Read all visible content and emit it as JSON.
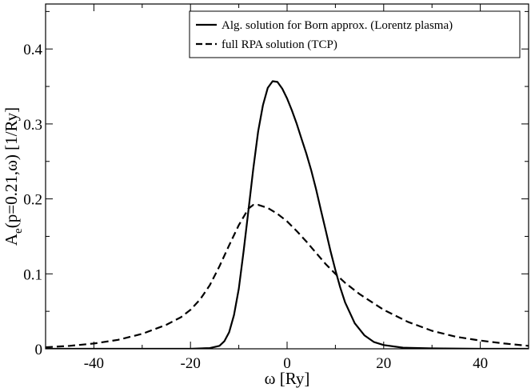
{
  "chart_data": {
    "type": "line",
    "title": "",
    "xlabel": "ω [Ry]",
    "ylabel": {
      "base": "A",
      "subscript": "e",
      "rest": "(p=0.21,ω) [1/Ry]"
    },
    "xlim": [
      -50,
      50
    ],
    "ylim": [
      0,
      0.46
    ],
    "x_ticks": [
      -40,
      -20,
      0,
      20,
      40
    ],
    "y_ticks": [
      0,
      0.1,
      0.2,
      0.3,
      0.4
    ],
    "x_tick_labels": [
      "-40",
      "-20",
      "0",
      "20",
      "40"
    ],
    "y_tick_labels": [
      "0",
      "0.1",
      "0.2",
      "0.3",
      "0.4"
    ],
    "grid": false,
    "legend_position": "top-right",
    "series": [
      {
        "name": "Alg. solution for Born approx. (Lorentz plasma)",
        "style": "solid",
        "color": "#000000",
        "x": [
          -50,
          -20,
          -16,
          -14,
          -13,
          -12,
          -11,
          -10,
          -9,
          -8,
          -7,
          -6,
          -5,
          -4,
          -3,
          -2,
          -1,
          0,
          1,
          2,
          3,
          4,
          5,
          6,
          7,
          8,
          9,
          10,
          11,
          12,
          14,
          16,
          18,
          20,
          24,
          30,
          40,
          50
        ],
        "y": [
          0,
          0,
          0.001,
          0.004,
          0.01,
          0.022,
          0.045,
          0.08,
          0.13,
          0.185,
          0.24,
          0.29,
          0.325,
          0.348,
          0.357,
          0.356,
          0.347,
          0.334,
          0.318,
          0.3,
          0.28,
          0.26,
          0.238,
          0.213,
          0.185,
          0.158,
          0.13,
          0.105,
          0.082,
          0.062,
          0.034,
          0.018,
          0.009,
          0.005,
          0.0015,
          0.0005,
          0,
          0
        ]
      },
      {
        "name": "full RPA solution (TCP)",
        "style": "dashed",
        "color": "#000000",
        "x": [
          -50,
          -45,
          -40,
          -35,
          -30,
          -25,
          -22,
          -20,
          -18,
          -16,
          -14,
          -12,
          -10,
          -8,
          -7,
          -6,
          -4,
          -2,
          0,
          2,
          4,
          6,
          8,
          10,
          12,
          15,
          20,
          25,
          30,
          35,
          40,
          45,
          50
        ],
        "y": [
          0.002,
          0.004,
          0.007,
          0.012,
          0.02,
          0.032,
          0.042,
          0.052,
          0.066,
          0.085,
          0.11,
          0.138,
          0.165,
          0.187,
          0.192,
          0.192,
          0.188,
          0.18,
          0.17,
          0.157,
          0.143,
          0.128,
          0.113,
          0.1,
          0.088,
          0.073,
          0.052,
          0.036,
          0.024,
          0.016,
          0.011,
          0.007,
          0.004
        ]
      }
    ]
  }
}
